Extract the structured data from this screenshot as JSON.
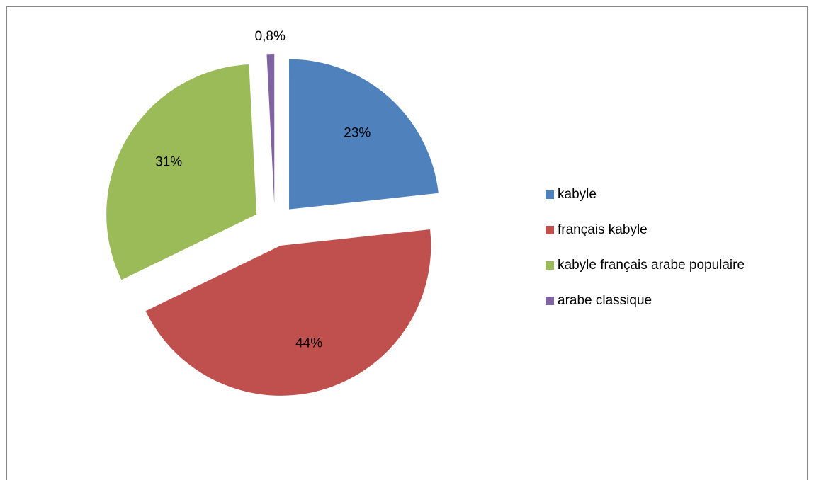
{
  "chart_data": {
    "type": "pie",
    "categories": [
      "kabyle",
      "français kabyle",
      "kabyle français arabe populaire",
      "arabe classique"
    ],
    "values": [
      23,
      44,
      31,
      0.8
    ],
    "value_labels": [
      "23%",
      "44%",
      "31%",
      "0,8%"
    ],
    "colors": [
      "#4f81bd",
      "#c0504d",
      "#9bbb59",
      "#8064a2"
    ],
    "legend": "right"
  }
}
